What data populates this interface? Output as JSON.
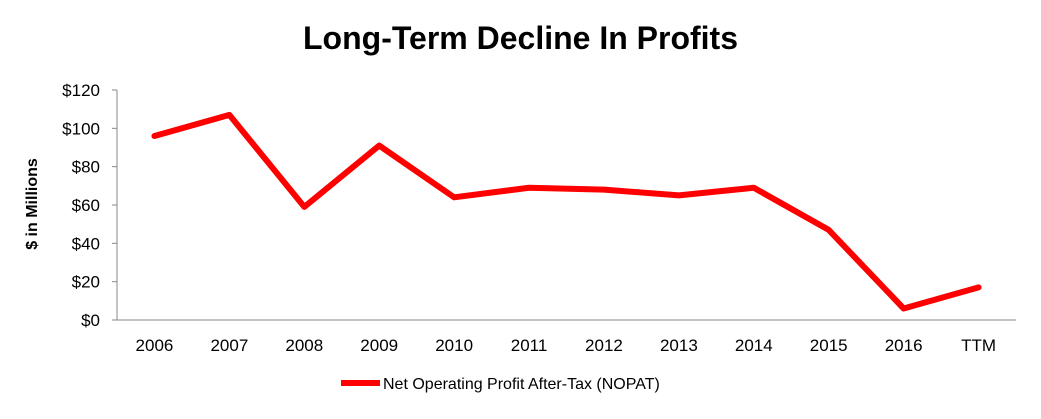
{
  "chart_data": {
    "type": "line",
    "title": "Long-Term Decline In Profits",
    "xlabel": "",
    "ylabel": "$ in Millions",
    "categories": [
      "2006",
      "2007",
      "2008",
      "2009",
      "2010",
      "2011",
      "2012",
      "2013",
      "2014",
      "2015",
      "2016",
      "TTM"
    ],
    "y_ticks": [
      "$0",
      "$20",
      "$40",
      "$60",
      "$80",
      "$100",
      "$120"
    ],
    "ylim": [
      0,
      120
    ],
    "grid": false,
    "legend_position": "bottom",
    "series": [
      {
        "name": "Net Operating Profit After-Tax (NOPAT)",
        "color": "#ff0000",
        "values": [
          96,
          107,
          59,
          91,
          64,
          69,
          68,
          65,
          69,
          47,
          6,
          17
        ]
      }
    ]
  }
}
